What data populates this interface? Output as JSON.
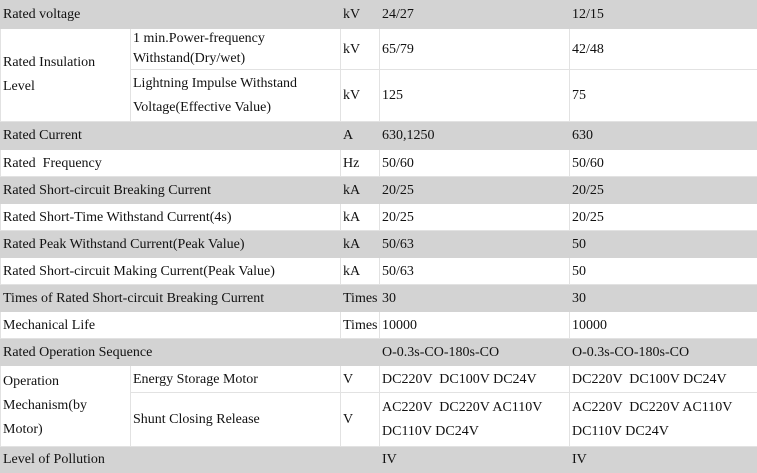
{
  "rows": {
    "voltage": {
      "label": "Rated voltage",
      "unit": "kV",
      "v1": "24/27",
      "v2": "12/15"
    },
    "insulation": {
      "label": "Rated Insulation Level",
      "power_freq": {
        "label": "1 min.Power-frequency Withstand(Dry/wet)",
        "unit": "kV",
        "v1": "65/79",
        "v2": "42/48"
      },
      "lightning": {
        "label": "Lightning Impulse Withstand Voltage(Effective Value)",
        "unit": "kV",
        "v1": "125",
        "v2": "75"
      }
    },
    "current": {
      "label": "Rated Current",
      "unit": "A",
      "v1": "630,1250",
      "v2": "630"
    },
    "frequency": {
      "label": "Rated  Frequency",
      "unit": "Hz",
      "v1": "50/60",
      "v2": "50/60"
    },
    "sc_breaking": {
      "label": "Rated Short-circuit Breaking Current",
      "unit": "kA",
      "v1": "20/25",
      "v2": "20/25"
    },
    "short_time": {
      "label": "Rated Short-Time Withstand Current(4s)",
      "unit": "kA",
      "v1": "20/25",
      "v2": "20/25"
    },
    "peak": {
      "label": "Rated Peak Withstand Current(Peak Value)",
      "unit": "kA",
      "v1": "50/63",
      "v2": "50"
    },
    "sc_making": {
      "label": "Rated Short-circuit Making Current(Peak Value)",
      "unit": "kA",
      "v1": "50/63",
      "v2": "50"
    },
    "times": {
      "label": "Times of Rated Short-circuit Breaking Current",
      "unit": "Times",
      "v1": "30",
      "v2": "30"
    },
    "mech_life": {
      "label": "Mechanical Life",
      "unit": "Times",
      "v1": "10000",
      "v2": "10000"
    },
    "op_seq": {
      "label": "Rated Operation Sequence",
      "unit": "",
      "v1": "O-0.3s-CO-180s-CO",
      "v2": "O-0.3s-CO-180s-CO"
    },
    "mechanism": {
      "label": "Operation Mechanism(by Motor)",
      "motor": {
        "label": "Energy Storage Motor",
        "unit": "V",
        "v1": "DC220V  DC100V DC24V",
        "v2": "DC220V  DC100V DC24V"
      },
      "shunt": {
        "label": "Shunt Closing Release",
        "unit": "V",
        "v1": "AC220V  DC220V AC110V  DC110V DC24V",
        "v2": "AC220V  DC220V AC110V  DC110V DC24V"
      }
    },
    "pollution": {
      "label": "Level of Pollution",
      "unit": "",
      "v1": "IV",
      "v2": "IV"
    }
  }
}
